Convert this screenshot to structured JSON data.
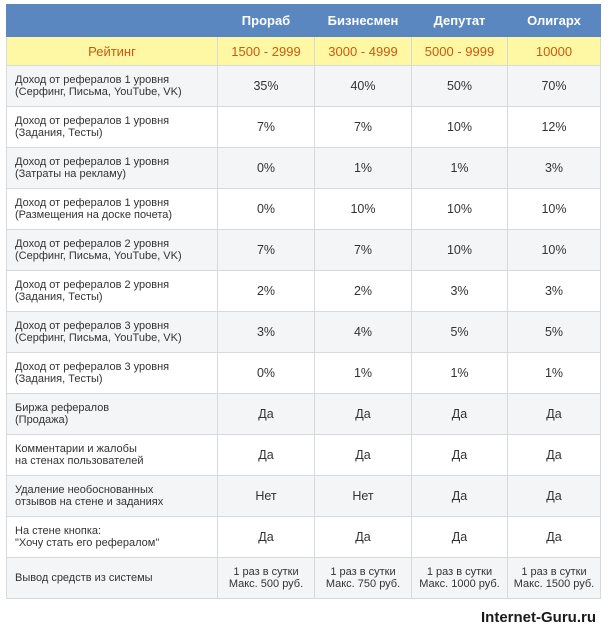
{
  "header": {
    "columns": [
      "Прораб",
      "Бизнесмен",
      "Депутат",
      "Олигарх"
    ]
  },
  "rating": {
    "label": "Рейтинг",
    "values": [
      "1500 - 2999",
      "3000 - 4999",
      "5000 - 9999",
      "10000"
    ]
  },
  "rows": [
    {
      "label1": "Доход от рефералов 1 уровня",
      "label2": "(Серфинг, Письма, YouTube, VK)",
      "values": [
        "35%",
        "40%",
        "50%",
        "70%"
      ]
    },
    {
      "label1": "Доход от рефералов 1 уровня",
      "label2": "(Задания, Тесты)",
      "values": [
        "7%",
        "7%",
        "10%",
        "12%"
      ]
    },
    {
      "label1": "Доход от рефералов 1 уровня",
      "label2": "(Затраты на рекламу)",
      "values": [
        "0%",
        "1%",
        "1%",
        "3%"
      ]
    },
    {
      "label1": "Доход от рефералов 1 уровня",
      "label2": "(Размещения на доске почета)",
      "values": [
        "0%",
        "10%",
        "10%",
        "10%"
      ]
    },
    {
      "label1": "Доход от рефералов 2 уровня",
      "label2": "(Серфинг, Письма, YouTube, VK)",
      "values": [
        "7%",
        "7%",
        "10%",
        "10%"
      ]
    },
    {
      "label1": "Доход от рефералов 2 уровня",
      "label2": "(Задания, Тесты)",
      "values": [
        "2%",
        "2%",
        "3%",
        "3%"
      ]
    },
    {
      "label1": "Доход от рефералов 3 уровня",
      "label2": "(Серфинг, Письма, YouTube, VK)",
      "values": [
        "3%",
        "4%",
        "5%",
        "5%"
      ]
    },
    {
      "label1": "Доход от рефералов 3 уровня",
      "label2": "(Задания, Тесты)",
      "values": [
        "0%",
        "1%",
        "1%",
        "1%"
      ]
    },
    {
      "label1": "Биржа рефералов",
      "label2": "(Продажа)",
      "values": [
        "Да",
        "Да",
        "Да",
        "Да"
      ]
    },
    {
      "label1": "Комментарии и жалобы",
      "label2": "на стенах пользователей",
      "values": [
        "Да",
        "Да",
        "Да",
        "Да"
      ]
    },
    {
      "label1": "Удаление необоснованных",
      "label2": "отзывов на стене и заданиях",
      "values": [
        "Нет",
        "Нет",
        "Да",
        "Да"
      ]
    },
    {
      "label1": "На стене кнопка:",
      "label2": "\"Хочу стать его рефералом\"",
      "values": [
        "Да",
        "Да",
        "Да",
        "Да"
      ]
    }
  ],
  "withdrawal": {
    "label": "Вывод средств из системы",
    "values": [
      {
        "line1": "1 раз в сутки",
        "line2": "Макс. 500 руб."
      },
      {
        "line1": "1 раз в сутки",
        "line2": "Макс. 750 руб."
      },
      {
        "line1": "1 раз в сутки",
        "line2": "Макс. 1000 руб."
      },
      {
        "line1": "1 раз в сутки",
        "line2": "Макс. 1500 руб."
      }
    ]
  },
  "watermark": "Internet-Guru.ru"
}
